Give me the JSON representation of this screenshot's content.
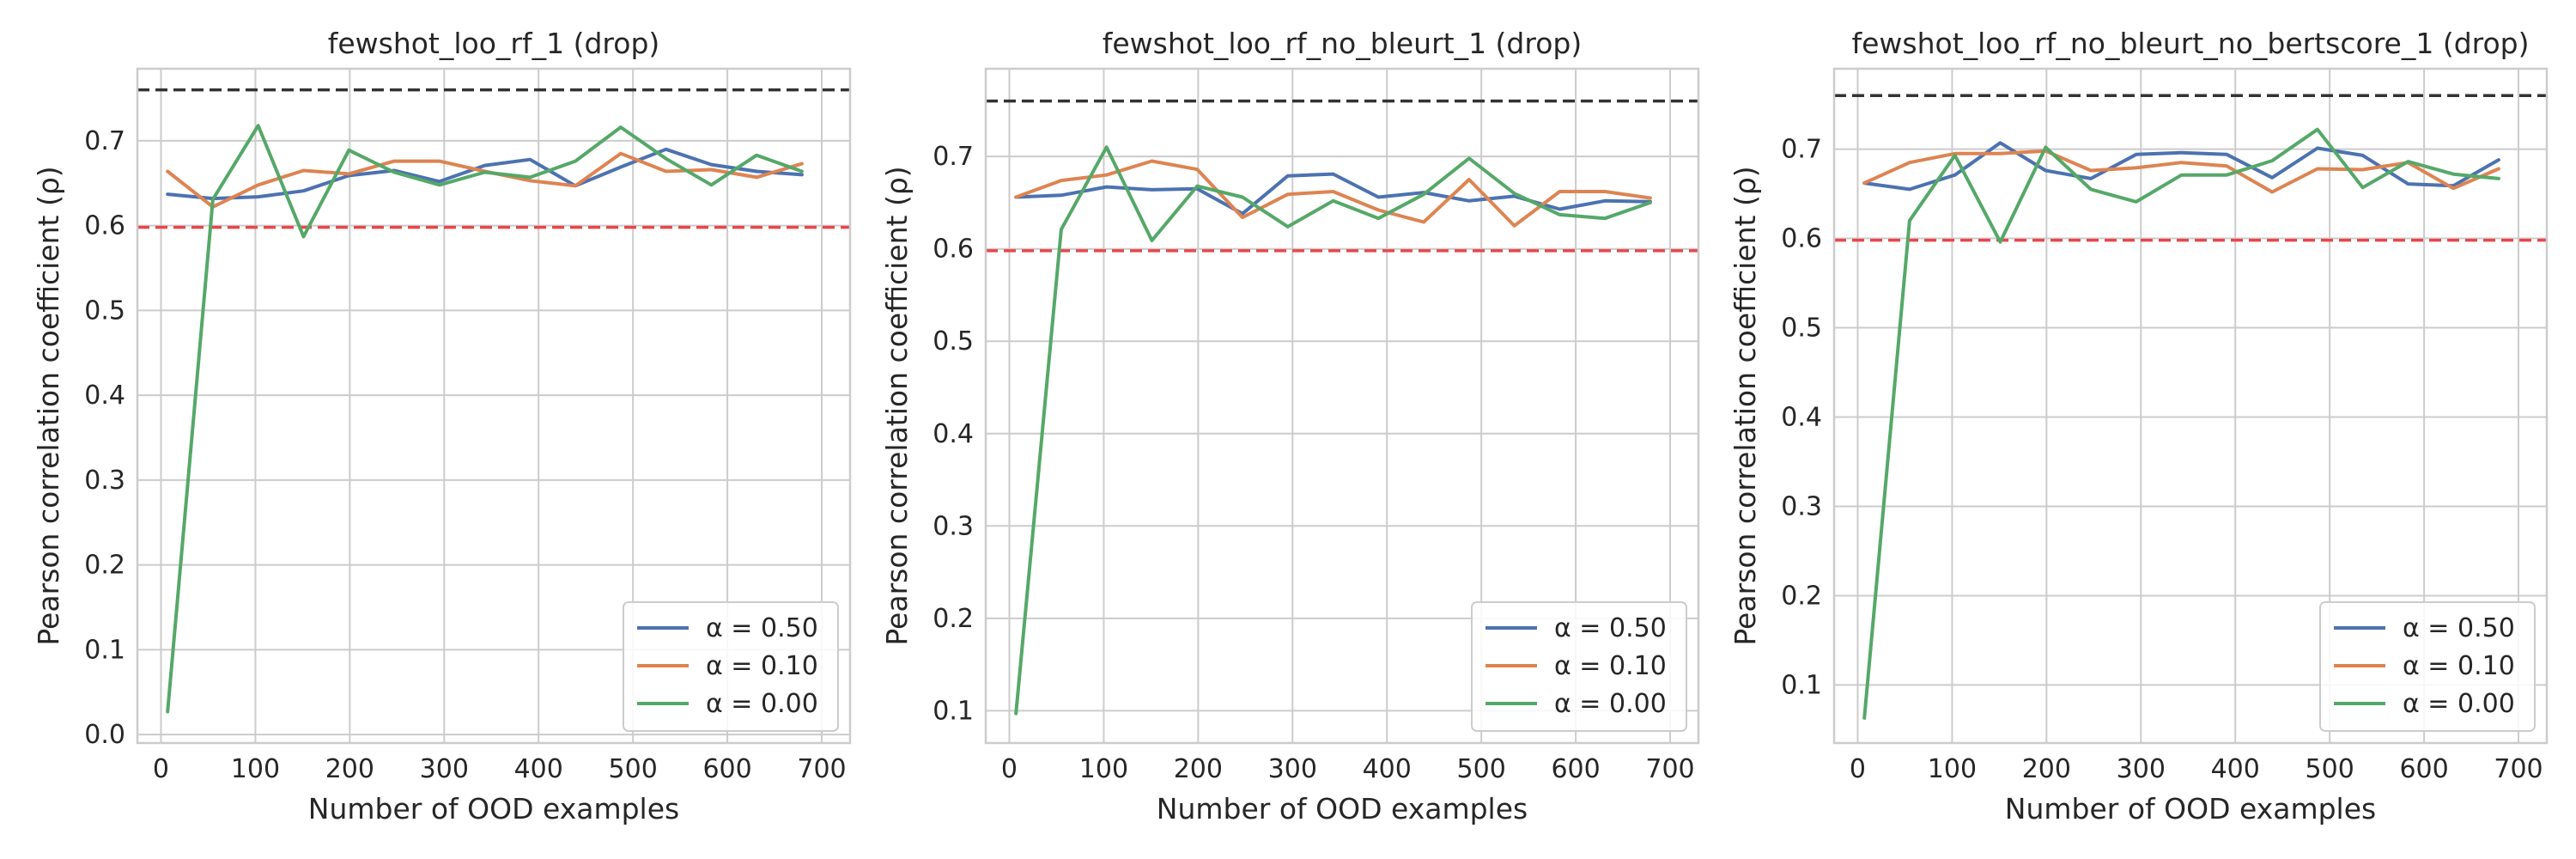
{
  "chart_data": [
    {
      "type": "line",
      "title": "fewshot_loo_rf_1 (drop)",
      "xlabel": "Number of OOD examples",
      "ylabel": "Pearson correlation coefficient (ρ)",
      "xlim": [
        -25,
        730
      ],
      "ylim": [
        -0.01,
        0.785
      ],
      "xticks": [
        "0",
        "100",
        "200",
        "300",
        "400",
        "500",
        "600",
        "700"
      ],
      "yticks": [
        "0.0",
        "0.1",
        "0.2",
        "0.3",
        "0.4",
        "0.5",
        "0.6",
        "0.7"
      ],
      "grid": true,
      "legend_position": "lower-right",
      "reference_lines": [
        {
          "y": 0.76,
          "color": "#333333",
          "style": "dashed"
        },
        {
          "y": 0.598,
          "color": "#e8474b",
          "style": "dashed"
        }
      ],
      "x": [
        7,
        55,
        103,
        151,
        199,
        247,
        295,
        343,
        391,
        439,
        487,
        535,
        583,
        631,
        679
      ],
      "series": [
        {
          "name": "α = 0.50",
          "color": "#4c72b0",
          "values": [
            0.637,
            0.632,
            0.634,
            0.641,
            0.659,
            0.665,
            0.652,
            0.671,
            0.678,
            0.647,
            0.669,
            0.69,
            0.672,
            0.664,
            0.66
          ]
        },
        {
          "name": "α = 0.10",
          "color": "#dd8452",
          "values": [
            0.664,
            0.622,
            0.648,
            0.665,
            0.661,
            0.676,
            0.676,
            0.664,
            0.653,
            0.647,
            0.685,
            0.664,
            0.666,
            0.657,
            0.673
          ]
        },
        {
          "name": "α = 0.00",
          "color": "#55a868",
          "values": [
            0.027,
            0.631,
            0.718,
            0.587,
            0.689,
            0.663,
            0.648,
            0.663,
            0.657,
            0.676,
            0.716,
            0.679,
            0.648,
            0.683,
            0.664
          ]
        }
      ]
    },
    {
      "type": "line",
      "title": "fewshot_loo_rf_no_bleurt_1 (drop)",
      "xlabel": "Number of OOD examples",
      "ylabel": "Pearson correlation coefficient (ρ)",
      "xlim": [
        -25,
        730
      ],
      "ylim": [
        0.065,
        0.795
      ],
      "xticks": [
        "0",
        "100",
        "200",
        "300",
        "400",
        "500",
        "600",
        "700"
      ],
      "yticks": [
        "0.1",
        "0.2",
        "0.3",
        "0.4",
        "0.5",
        "0.6",
        "0.7"
      ],
      "grid": true,
      "legend_position": "lower-right",
      "reference_lines": [
        {
          "y": 0.76,
          "color": "#333333",
          "style": "dashed"
        },
        {
          "y": 0.598,
          "color": "#e8474b",
          "style": "dashed"
        }
      ],
      "x": [
        7,
        55,
        103,
        151,
        199,
        247,
        295,
        343,
        391,
        439,
        487,
        535,
        583,
        631,
        679
      ],
      "series": [
        {
          "name": "α = 0.50",
          "color": "#4c72b0",
          "values": [
            0.656,
            0.658,
            0.667,
            0.664,
            0.665,
            0.638,
            0.679,
            0.681,
            0.656,
            0.661,
            0.652,
            0.657,
            0.643,
            0.652,
            0.651
          ]
        },
        {
          "name": "α = 0.10",
          "color": "#dd8452",
          "values": [
            0.656,
            0.674,
            0.68,
            0.695,
            0.686,
            0.634,
            0.659,
            0.662,
            0.642,
            0.629,
            0.675,
            0.625,
            0.662,
            0.662,
            0.655
          ]
        },
        {
          "name": "α = 0.00",
          "color": "#55a868",
          "values": [
            0.097,
            0.621,
            0.71,
            0.609,
            0.668,
            0.656,
            0.624,
            0.652,
            0.633,
            0.659,
            0.698,
            0.66,
            0.637,
            0.633,
            0.65
          ]
        }
      ]
    },
    {
      "type": "line",
      "title": "fewshot_loo_rf_no_bleurt_no_bertscore_1 (drop)",
      "xlabel": "Number of OOD examples",
      "ylabel": "Pearson correlation coefficient (ρ)",
      "xlim": [
        -25,
        730
      ],
      "ylim": [
        0.035,
        0.79
      ],
      "xticks": [
        "0",
        "100",
        "200",
        "300",
        "400",
        "500",
        "600",
        "700"
      ],
      "yticks": [
        "0.1",
        "0.2",
        "0.3",
        "0.4",
        "0.5",
        "0.6",
        "0.7"
      ],
      "grid": true,
      "legend_position": "lower-right",
      "reference_lines": [
        {
          "y": 0.76,
          "color": "#333333",
          "style": "dashed"
        },
        {
          "y": 0.598,
          "color": "#e8474b",
          "style": "dashed"
        }
      ],
      "x": [
        7,
        55,
        103,
        151,
        199,
        247,
        295,
        343,
        391,
        439,
        487,
        535,
        583,
        631,
        679
      ],
      "series": [
        {
          "name": "α = 0.50",
          "color": "#4c72b0",
          "values": [
            0.662,
            0.655,
            0.671,
            0.707,
            0.676,
            0.667,
            0.694,
            0.696,
            0.694,
            0.668,
            0.701,
            0.693,
            0.661,
            0.659,
            0.688
          ]
        },
        {
          "name": "α = 0.10",
          "color": "#dd8452",
          "values": [
            0.662,
            0.685,
            0.695,
            0.695,
            0.698,
            0.676,
            0.679,
            0.685,
            0.681,
            0.652,
            0.678,
            0.677,
            0.685,
            0.656,
            0.678
          ]
        },
        {
          "name": "α = 0.00",
          "color": "#55a868",
          "values": [
            0.063,
            0.62,
            0.693,
            0.596,
            0.702,
            0.655,
            0.641,
            0.671,
            0.671,
            0.687,
            0.722,
            0.657,
            0.686,
            0.672,
            0.667
          ]
        }
      ]
    }
  ]
}
